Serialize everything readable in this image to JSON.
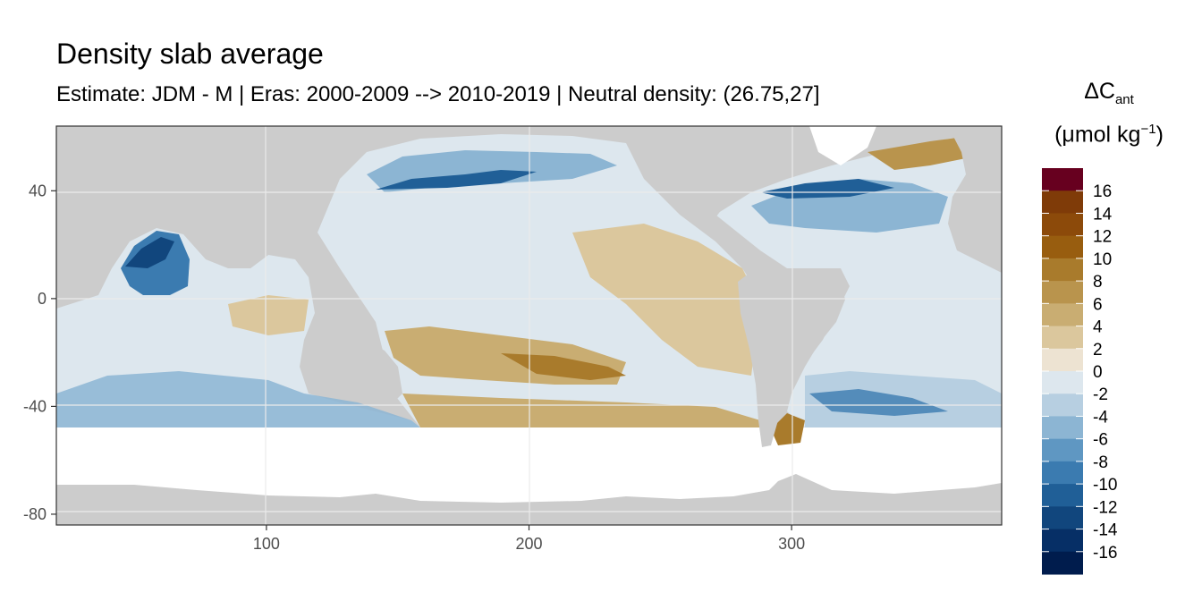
{
  "chart_data": {
    "type": "heatmap",
    "title": "Density slab average",
    "subtitle": "Estimate: JDM - M | Eras: 2000-2009 --> 2010-2019 | Neutral density: (26.75,27]",
    "legend": {
      "title_main": "ΔC",
      "title_sub": "ant",
      "unit_prefix": "(μmol kg",
      "unit_sup": "−1",
      "unit_suffix": ")",
      "placement": "right",
      "breaks": [
        16,
        14,
        12,
        10,
        8,
        6,
        4,
        2,
        0,
        -2,
        -4,
        -6,
        -8,
        -10,
        -12,
        -14,
        -16
      ],
      "colors": [
        "#67001f",
        "#7f3b08",
        "#8c4a0a",
        "#985d0f",
        "#a97b2c",
        "#b9944d",
        "#c9ad72",
        "#dbc79d",
        "#ede3d2",
        "#dde7ee",
        "#b7cfe1",
        "#8cb5d3",
        "#5f97c2",
        "#3b7bb0",
        "#205f97",
        "#11467d",
        "#062f66",
        "#001c4d"
      ]
    },
    "x_axis": {
      "ticks": [
        100,
        200,
        300
      ],
      "range": [
        20,
        380
      ]
    },
    "y_axis": {
      "ticks": [
        40,
        0,
        -40,
        -80
      ],
      "range": [
        -84,
        64
      ]
    },
    "grid": true,
    "background": "#cccccc"
  }
}
